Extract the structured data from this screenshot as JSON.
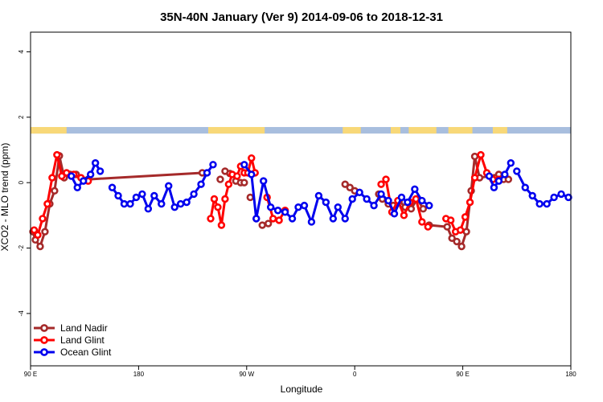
{
  "chart_data": {
    "type": "line",
    "title": "35N-40N January (Ver 9)   2014-09-06 to 2018-12-31",
    "xlabel": "Longitude",
    "ylabel": "XCO2 - MLO trend (ppm)",
    "xlim": [
      0,
      450
    ],
    "ylim": [
      -5.6,
      4.6
    ],
    "x_ticks": [
      {
        "value": 0,
        "label": "90 E"
      },
      {
        "value": 90,
        "label": "180"
      },
      {
        "value": 180,
        "label": "90 W"
      },
      {
        "value": 270,
        "label": "0"
      },
      {
        "value": 360,
        "label": "90 E"
      },
      {
        "value": 450,
        "label": "180"
      }
    ],
    "y_ticks": [
      {
        "value": -4,
        "label": "-4"
      },
      {
        "value": -2,
        "label": "-2"
      },
      {
        "value": 0,
        "label": "0"
      },
      {
        "value": 2,
        "label": "2"
      },
      {
        "value": 4,
        "label": "4"
      }
    ],
    "grid": false,
    "legend_position": "bottom-left",
    "land_ocean_band": {
      "y_range": [
        1.5,
        1.7
      ],
      "land_color": "#f8d878",
      "ocean_color": "#a8bede",
      "land_segments": [
        [
          0,
          30
        ],
        [
          148,
          195
        ],
        [
          260,
          275
        ],
        [
          300,
          308
        ],
        [
          315,
          338
        ],
        [
          348,
          368
        ],
        [
          385,
          397
        ]
      ]
    },
    "series": [
      {
        "name": "Land Nadir",
        "color": "#a52a2a",
        "x": [
          2,
          4,
          8,
          12,
          16,
          20,
          24,
          28,
          33,
          38,
          48,
          143,
          158,
          162,
          166,
          171,
          175,
          178,
          183,
          188,
          193,
          198,
          262,
          266,
          270,
          290,
          293,
          298,
          302,
          307,
          312,
          317,
          322,
          327,
          332,
          347,
          351,
          355,
          359,
          363,
          367,
          370,
          374,
          390,
          394,
          398
        ],
        "y": [
          -1.5,
          -1.75,
          -1.95,
          -1.5,
          -0.65,
          -0.25,
          0.82,
          0.15,
          0.25,
          0.25,
          0.1,
          0.3,
          0.1,
          0.35,
          0.28,
          0.05,
          0.0,
          0.0,
          -0.45,
          -1.1,
          -1.3,
          -1.25,
          -0.05,
          -0.15,
          -0.25,
          -0.35,
          -0.5,
          -0.65,
          -0.7,
          -0.55,
          -0.75,
          -0.8,
          -0.5,
          -0.8,
          -1.3,
          -1.35,
          -1.7,
          -1.8,
          -1.95,
          -1.5,
          -0.25,
          0.8,
          0.15,
          0.25,
          0.1,
          0.1
        ],
        "segments": [
          [
            0,
            11
          ],
          [
            22,
            23
          ],
          [
            25,
            33
          ],
          [
            34,
            45
          ]
        ]
      },
      {
        "name": "Land Glint",
        "color": "#ff0000",
        "x": [
          3,
          6,
          10,
          14,
          18,
          22,
          26,
          30,
          36,
          42,
          48,
          150,
          153,
          156,
          159,
          162,
          165,
          168,
          172,
          175,
          178,
          181,
          184,
          187,
          197,
          202,
          207,
          212,
          292,
          296,
          301,
          306,
          311,
          316,
          321,
          326,
          331,
          346,
          350,
          354,
          358,
          362,
          366,
          370,
          375,
          380,
          385,
          390
        ],
        "y": [
          -1.45,
          -1.6,
          -1.1,
          -0.65,
          0.15,
          0.85,
          0.2,
          0.3,
          0.25,
          0.15,
          0.05,
          -1.1,
          -0.5,
          -0.75,
          -1.3,
          -0.5,
          -0.05,
          0.25,
          0.2,
          0.5,
          0.3,
          0.3,
          0.75,
          0.3,
          -0.45,
          -1.1,
          -1.15,
          -0.85,
          -0.05,
          0.1,
          -0.9,
          -0.55,
          -1.0,
          -0.6,
          -0.5,
          -1.2,
          -1.35,
          -1.1,
          -1.15,
          -1.5,
          -1.45,
          -1.05,
          -0.6,
          0.15,
          0.85,
          0.3,
          0.1,
          0.1
        ],
        "segments": [
          [
            0,
            10
          ],
          [
            11,
            23
          ],
          [
            24,
            27
          ],
          [
            28,
            36
          ],
          [
            37,
            47
          ]
        ]
      },
      {
        "name": "Ocean Glint",
        "color": "#0000ee",
        "x": [
          34,
          39,
          44,
          50,
          54,
          58,
          68,
          73,
          78,
          83,
          88,
          93,
          98,
          103,
          109,
          115,
          120,
          125,
          130,
          136,
          142,
          147,
          152,
          178,
          184,
          188,
          194,
          200,
          206,
          212,
          218,
          223,
          228,
          234,
          240,
          246,
          252,
          256,
          262,
          268,
          274,
          280,
          286,
          292,
          298,
          303,
          309,
          314,
          320,
          326,
          332,
          382,
          386,
          390,
          395,
          400,
          405,
          412,
          418,
          424,
          430,
          436,
          442,
          448
        ],
        "y": [
          0.2,
          -0.15,
          0.05,
          0.25,
          0.6,
          0.35,
          -0.15,
          -0.4,
          -0.65,
          -0.65,
          -0.45,
          -0.35,
          -0.8,
          -0.4,
          -0.65,
          -0.1,
          -0.75,
          -0.65,
          -0.6,
          -0.35,
          -0.05,
          0.3,
          0.55,
          0.55,
          0.25,
          -1.1,
          0.05,
          -0.75,
          -0.85,
          -0.9,
          -1.1,
          -0.75,
          -0.7,
          -1.2,
          -0.4,
          -0.6,
          -1.1,
          -0.75,
          -1.1,
          -0.5,
          -0.3,
          -0.5,
          -0.7,
          -0.35,
          -0.55,
          -0.95,
          -0.45,
          -0.6,
          -0.2,
          -0.55,
          -0.7,
          0.2,
          -0.15,
          0.05,
          0.25,
          0.6,
          0.35,
          -0.15,
          -0.4,
          -0.65,
          -0.65,
          -0.45,
          -0.35,
          -0.45
        ],
        "segments": [
          [
            0,
            5
          ],
          [
            6,
            22
          ],
          [
            23,
            50
          ],
          [
            51,
            55
          ],
          [
            56,
            63
          ]
        ]
      }
    ]
  }
}
